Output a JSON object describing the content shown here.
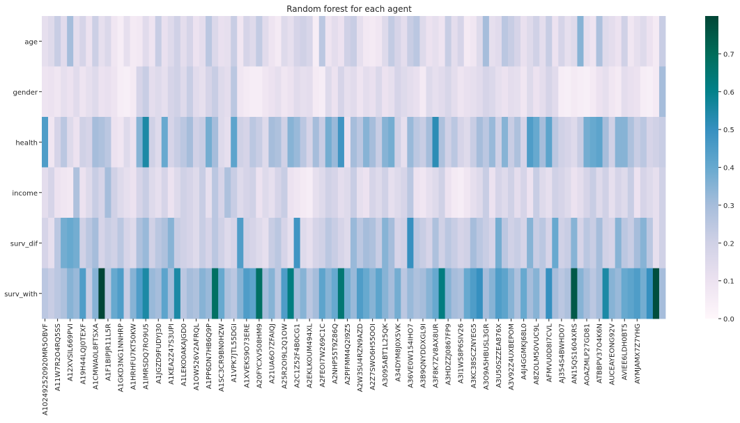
{
  "chart_data": {
    "type": "heatmap",
    "title": "Random forest for each agent",
    "xlabel": "",
    "ylabel": "",
    "colormap": "PuBuGn",
    "vmin": 0,
    "vmax": 0.8,
    "colorbar_ticks": [
      "0.0",
      "0.1",
      "0.2",
      "0.3",
      "0.4",
      "0.5",
      "0.6",
      "0.7"
    ],
    "colorbar_tick_values": [
      0,
      0.1,
      0.2,
      0.3,
      0.4,
      0.5,
      0.6,
      0.7
    ],
    "rows": [
      "age",
      "gender",
      "health",
      "income",
      "surv_dif",
      "surv_with"
    ],
    "column_count": 99,
    "x_tick_labels": [
      "A102492520920MR5OBVF",
      "A11W7R2O4RQ5SS",
      "A12XVSIL669PVI",
      "A19H44LQJ0TEXF",
      "A1CMWA0L8FTSXA",
      "A1F1BIPJR11L5R",
      "A1GKD3NG1NNHRP",
      "A1HRHFU7KT50KW",
      "A1IMRSDQ7RO9U5",
      "A1JGZD9FUDYJ30",
      "A1KEA2Z47S3UPI",
      "A1LEKO0AKAJGD0",
      "A1OW526V2AFRQL",
      "A1PP6DN7HB6Q9P",
      "A1SC3CR9BN0HZW",
      "A1VPK7JTL55DGI",
      "A1XVEKS9O73ERE",
      "A20FYCXV508HM9",
      "A21UA6O7ZFAIQJ",
      "A25R2OI9L2Q1OW",
      "A2C1Z52F4B0CG1",
      "A2EKLKOUM494XL",
      "A2FEOI7W269C1C",
      "A2NHP55T9Z86Q",
      "A2PIFMM4Q2I9Z5",
      "A2W3SU4RZN9AZD",
      "A2Z7SWO6H55OOI",
      "A3095ABT1L25QK",
      "A34DYM8J0X5VK",
      "A36VE0W154IHO7",
      "A3B9QNYDDXGL9I",
      "A3F8K7ZV8AX8UR",
      "A3HDZZJ0867FP9",
      "A3I1W58P6SIV26",
      "A3KC38SCZNYEG5",
      "A3O9A5HBUSL3GR",
      "A3U50SZZEA876X",
      "A3V92Z4UXBEPOM",
      "A4J4GGMKJ68L0",
      "A8ZOLM50VUC9L",
      "AFMVU0D8I7CVL",
      "AJ354S4BWHD07",
      "AN15QS1604XRS",
      "AOAZMLP27GD81",
      "ATBBPV37O4K6N",
      "AUCEAYEONG92V",
      "AVIEE6LDH0BT5",
      "AYMJAMX7Z7YHG"
    ],
    "values": [
      [
        0.12,
        0.15,
        0.22,
        0.14,
        0.3,
        0.13,
        0.18,
        0.1,
        0.21,
        0.12,
        0.16,
        0.08,
        0.05,
        0.12,
        0.06,
        0.07,
        0.14,
        0.09,
        0.22,
        0.11,
        0.15,
        0.2,
        0.13,
        0.18,
        0.1,
        0.13,
        0.25,
        0.16,
        0.11,
        0.12,
        0.22,
        0.08,
        0.18,
        0.15,
        0.23,
        0.14,
        0.09,
        0.06,
        0.15,
        0.12,
        0.18,
        0.2,
        0.17,
        0.05,
        0.25,
        0.09,
        0.13,
        0.1,
        0.2,
        0.22,
        0.12,
        0.07,
        0.06,
        0.08,
        0.15,
        0.23,
        0.18,
        0.13,
        0.22,
        0.25,
        0.15,
        0.1,
        0.12,
        0.09,
        0.22,
        0.13,
        0.18,
        0.06,
        0.08,
        0.15,
        0.3,
        0.12,
        0.14,
        0.25,
        0.22,
        0.18,
        0.11,
        0.15,
        0.2,
        0.13,
        0.22,
        0.1,
        0.18,
        0.12,
        0.15,
        0.35,
        0.12,
        0.09,
        0.28,
        0.15,
        0.13,
        0.1,
        0.2,
        0.08,
        0.12,
        0.15,
        0.1,
        0.06,
        0.22
      ],
      [
        0.09,
        0.1,
        0.08,
        0.12,
        0.1,
        0.14,
        0.09,
        0.12,
        0.15,
        0.1,
        0.11,
        0.09,
        0.05,
        0.04,
        0.06,
        0.18,
        0.22,
        0.13,
        0.15,
        0.12,
        0.18,
        0.2,
        0.15,
        0.22,
        0.14,
        0.12,
        0.18,
        0.22,
        0.15,
        0.13,
        0.25,
        0.08,
        0.06,
        0.05,
        0.05,
        0.08,
        0.1,
        0.12,
        0.08,
        0.1,
        0.14,
        0.12,
        0.13,
        0.06,
        0.05,
        0.15,
        0.1,
        0.18,
        0.12,
        0.14,
        0.09,
        0.13,
        0.11,
        0.16,
        0.1,
        0.12,
        0.18,
        0.15,
        0.13,
        0.11,
        0.06,
        0.15,
        0.12,
        0.14,
        0.17,
        0.13,
        0.09,
        0.11,
        0.12,
        0.14,
        0.18,
        0.16,
        0.12,
        0.1,
        0.13,
        0.12,
        0.08,
        0.15,
        0.1,
        0.13,
        0.18,
        0.14,
        0.05,
        0.04,
        0.06,
        0.05,
        0.04,
        0.06,
        0.1,
        0.12,
        0.08,
        0.06,
        0.13,
        0.11,
        0.1,
        0.05,
        0.04,
        0.06,
        0.3
      ],
      [
        0.45,
        0.08,
        0.18,
        0.25,
        0.15,
        0.1,
        0.2,
        0.18,
        0.3,
        0.28,
        0.25,
        0.1,
        0.08,
        0.15,
        0.1,
        0.35,
        0.55,
        0.2,
        0.15,
        0.4,
        0.18,
        0.22,
        0.25,
        0.3,
        0.2,
        0.22,
        0.38,
        0.3,
        0.15,
        0.12,
        0.42,
        0.2,
        0.18,
        0.25,
        0.22,
        0.15,
        0.3,
        0.28,
        0.2,
        0.35,
        0.32,
        0.25,
        0.18,
        0.3,
        0.22,
        0.38,
        0.32,
        0.48,
        0.1,
        0.3,
        0.25,
        0.35,
        0.3,
        0.22,
        0.35,
        0.38,
        0.2,
        0.12,
        0.32,
        0.25,
        0.22,
        0.3,
        0.52,
        0.28,
        0.2,
        0.25,
        0.18,
        0.15,
        0.22,
        0.3,
        0.25,
        0.32,
        0.2,
        0.35,
        0.22,
        0.28,
        0.18,
        0.45,
        0.4,
        0.3,
        0.42,
        0.25,
        0.2,
        0.18,
        0.15,
        0.22,
        0.38,
        0.4,
        0.42,
        0.3,
        0.2,
        0.35,
        0.35,
        0.28,
        0.22,
        0.25,
        0.18,
        0.2,
        0.22
      ],
      [
        0.13,
        0.18,
        0.1,
        0.08,
        0.07,
        0.28,
        0.1,
        0.15,
        0.22,
        0.18,
        0.3,
        0.2,
        0.15,
        0.12,
        0.1,
        0.18,
        0.22,
        0.15,
        0.12,
        0.18,
        0.1,
        0.15,
        0.2,
        0.18,
        0.15,
        0.22,
        0.12,
        0.25,
        0.18,
        0.28,
        0.22,
        0.15,
        0.18,
        0.2,
        0.1,
        0.15,
        0.12,
        0.18,
        0.22,
        0.1,
        0.08,
        0.06,
        0.05,
        0.12,
        0.15,
        0.2,
        0.18,
        0.13,
        0.15,
        0.22,
        0.12,
        0.1,
        0.18,
        0.15,
        0.2,
        0.12,
        0.15,
        0.18,
        0.25,
        0.1,
        0.08,
        0.12,
        0.15,
        0.2,
        0.1,
        0.06,
        0.05,
        0.08,
        0.12,
        0.15,
        0.22,
        0.1,
        0.18,
        0.15,
        0.2,
        0.13,
        0.18,
        0.1,
        0.22,
        0.15,
        0.12,
        0.2,
        0.18,
        0.15,
        0.1,
        0.13,
        0.18,
        0.22,
        0.15,
        0.2,
        0.12,
        0.18,
        0.15,
        0.22,
        0.1,
        0.18,
        0.15,
        0.12,
        0.2
      ],
      [
        0.18,
        0.12,
        0.25,
        0.38,
        0.4,
        0.38,
        0.2,
        0.25,
        0.3,
        0.18,
        0.22,
        0.2,
        0.25,
        0.18,
        0.15,
        0.28,
        0.32,
        0.2,
        0.25,
        0.28,
        0.35,
        0.22,
        0.2,
        0.18,
        0.15,
        0.22,
        0.18,
        0.25,
        0.2,
        0.15,
        0.18,
        0.45,
        0.2,
        0.18,
        0.15,
        0.12,
        0.22,
        0.25,
        0.18,
        0.12,
        0.48,
        0.15,
        0.12,
        0.18,
        0.2,
        0.25,
        0.22,
        0.18,
        0.15,
        0.32,
        0.25,
        0.3,
        0.28,
        0.22,
        0.35,
        0.3,
        0.18,
        0.2,
        0.5,
        0.25,
        0.22,
        0.18,
        0.28,
        0.2,
        0.25,
        0.22,
        0.18,
        0.2,
        0.3,
        0.25,
        0.22,
        0.18,
        0.38,
        0.25,
        0.2,
        0.22,
        0.18,
        0.35,
        0.22,
        0.25,
        0.18,
        0.4,
        0.2,
        0.22,
        0.35,
        0.18,
        0.25,
        0.22,
        0.3,
        0.2,
        0.18,
        0.35,
        0.25,
        0.22,
        0.3,
        0.35,
        0.25,
        0.12,
        0.2
      ],
      [
        0.25,
        0.22,
        0.25,
        0.28,
        0.35,
        0.32,
        0.45,
        0.22,
        0.35,
        0.8,
        0.25,
        0.4,
        0.45,
        0.22,
        0.35,
        0.45,
        0.55,
        0.32,
        0.3,
        0.42,
        0.3,
        0.55,
        0.25,
        0.3,
        0.28,
        0.35,
        0.32,
        0.68,
        0.4,
        0.28,
        0.25,
        0.35,
        0.45,
        0.42,
        0.68,
        0.3,
        0.35,
        0.25,
        0.45,
        0.62,
        0.3,
        0.35,
        0.25,
        0.3,
        0.42,
        0.35,
        0.4,
        0.65,
        0.38,
        0.32,
        0.45,
        0.4,
        0.35,
        0.42,
        0.35,
        0.3,
        0.38,
        0.25,
        0.32,
        0.28,
        0.3,
        0.35,
        0.4,
        0.62,
        0.35,
        0.3,
        0.28,
        0.4,
        0.45,
        0.5,
        0.3,
        0.35,
        0.45,
        0.42,
        0.35,
        0.28,
        0.4,
        0.3,
        0.35,
        0.25,
        0.5,
        0.3,
        0.25,
        0.28,
        0.75,
        0.35,
        0.3,
        0.25,
        0.3,
        0.55,
        0.35,
        0.32,
        0.4,
        0.42,
        0.45,
        0.38,
        0.5,
        0.78,
        0.3
      ]
    ]
  }
}
